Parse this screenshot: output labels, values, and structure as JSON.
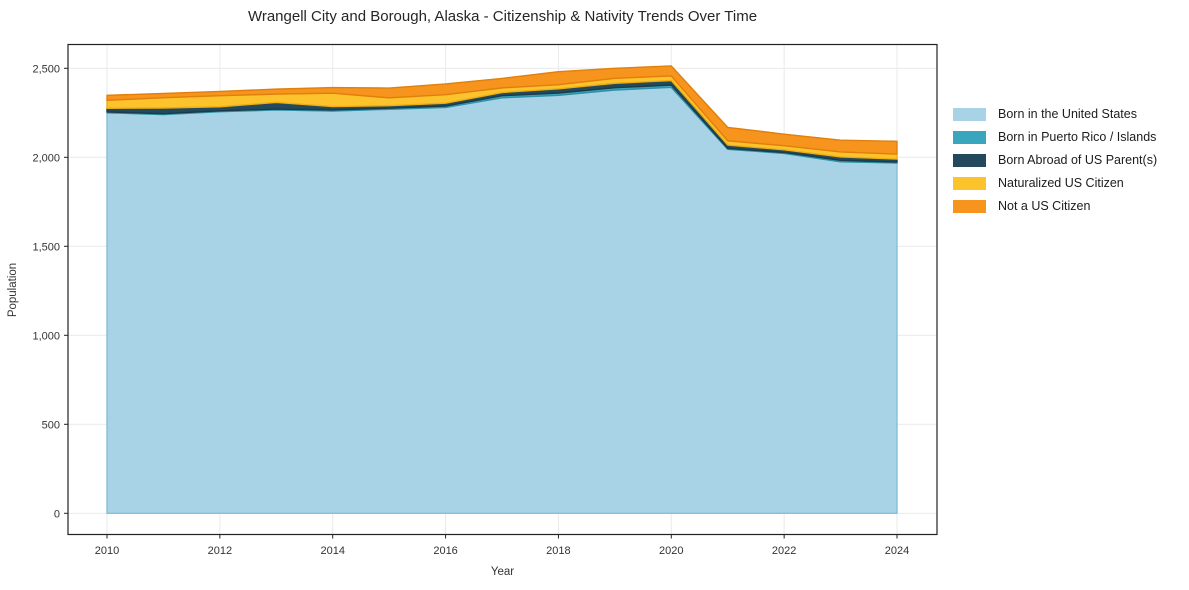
{
  "header": {
    "title": "Wrangell City and Borough, Alaska - Citizenship & Nativity Trends Over Time"
  },
  "legend": {
    "items": [
      {
        "label": "Born in the United States",
        "color": "#a8d3e6"
      },
      {
        "label": "Born in Puerto Rico / Islands",
        "color": "#39a6bd"
      },
      {
        "label": "Born Abroad of US Parent(s)",
        "color": "#24495c"
      },
      {
        "label": "Naturalized US Citizen",
        "color": "#fcc32d"
      },
      {
        "label": "Not a US Citizen",
        "color": "#f7941e"
      }
    ]
  },
  "chart_data": {
    "type": "area",
    "stacked": true,
    "title": "Wrangell City and Borough, Alaska - Citizenship & Nativity Trends Over Time",
    "xlabel": "Year",
    "ylabel": "Population",
    "grid": true,
    "legend_position": "right",
    "x": [
      2010,
      2011,
      2012,
      2013,
      2014,
      2015,
      2016,
      2017,
      2018,
      2019,
      2020,
      2021,
      2022,
      2023,
      2024
    ],
    "series": [
      {
        "name": "Born in the United States",
        "color": "#a8d3e6",
        "edge": "#85bfd9",
        "values": [
          2250,
          2240,
          2256,
          2266,
          2260,
          2270,
          2280,
          2334,
          2348,
          2378,
          2393,
          2045,
          2022,
          1975,
          1968
        ]
      },
      {
        "name": "Born in Puerto Rico / Islands",
        "color": "#39a6bd",
        "edge": "#2e91a6",
        "values": [
          5,
          5,
          5,
          5,
          6,
          6,
          8,
          12,
          13,
          13,
          13,
          5,
          5,
          8,
          5
        ]
      },
      {
        "name": "Born Abroad of US Parent(s)",
        "color": "#24495c",
        "edge": "#1b3a4a",
        "values": [
          20,
          32,
          23,
          37,
          19,
          14,
          16,
          18,
          24,
          25,
          25,
          19,
          15,
          19,
          17
        ]
      },
      {
        "name": "Naturalized US Citizen",
        "color": "#fcc32d",
        "edge": "#eead10",
        "values": [
          45,
          58,
          62,
          47,
          75,
          44,
          48,
          26,
          23,
          28,
          26,
          24,
          23,
          28,
          28
        ]
      },
      {
        "name": "Not a US Citizen",
        "color": "#f7941e",
        "edge": "#e07f0c",
        "values": [
          28,
          24,
          24,
          28,
          32,
          55,
          60,
          53,
          73,
          56,
          56,
          75,
          65,
          66,
          72
        ]
      }
    ],
    "x_ticks": [
      2010,
      2012,
      2014,
      2016,
      2018,
      2020,
      2022,
      2024
    ],
    "x_tick_labels": [
      "2010",
      "2012",
      "2014",
      "2016",
      "2018",
      "2020",
      "2022",
      "2024"
    ],
    "y_ticks": [
      0,
      500,
      1000,
      1500,
      2000,
      2500
    ],
    "y_tick_labels": [
      "0",
      "500",
      "1,000",
      "1,500",
      "2,000",
      "2,500"
    ],
    "xlim": [
      2009.3,
      2024.7
    ],
    "ylim": [
      -120,
      2635
    ]
  }
}
